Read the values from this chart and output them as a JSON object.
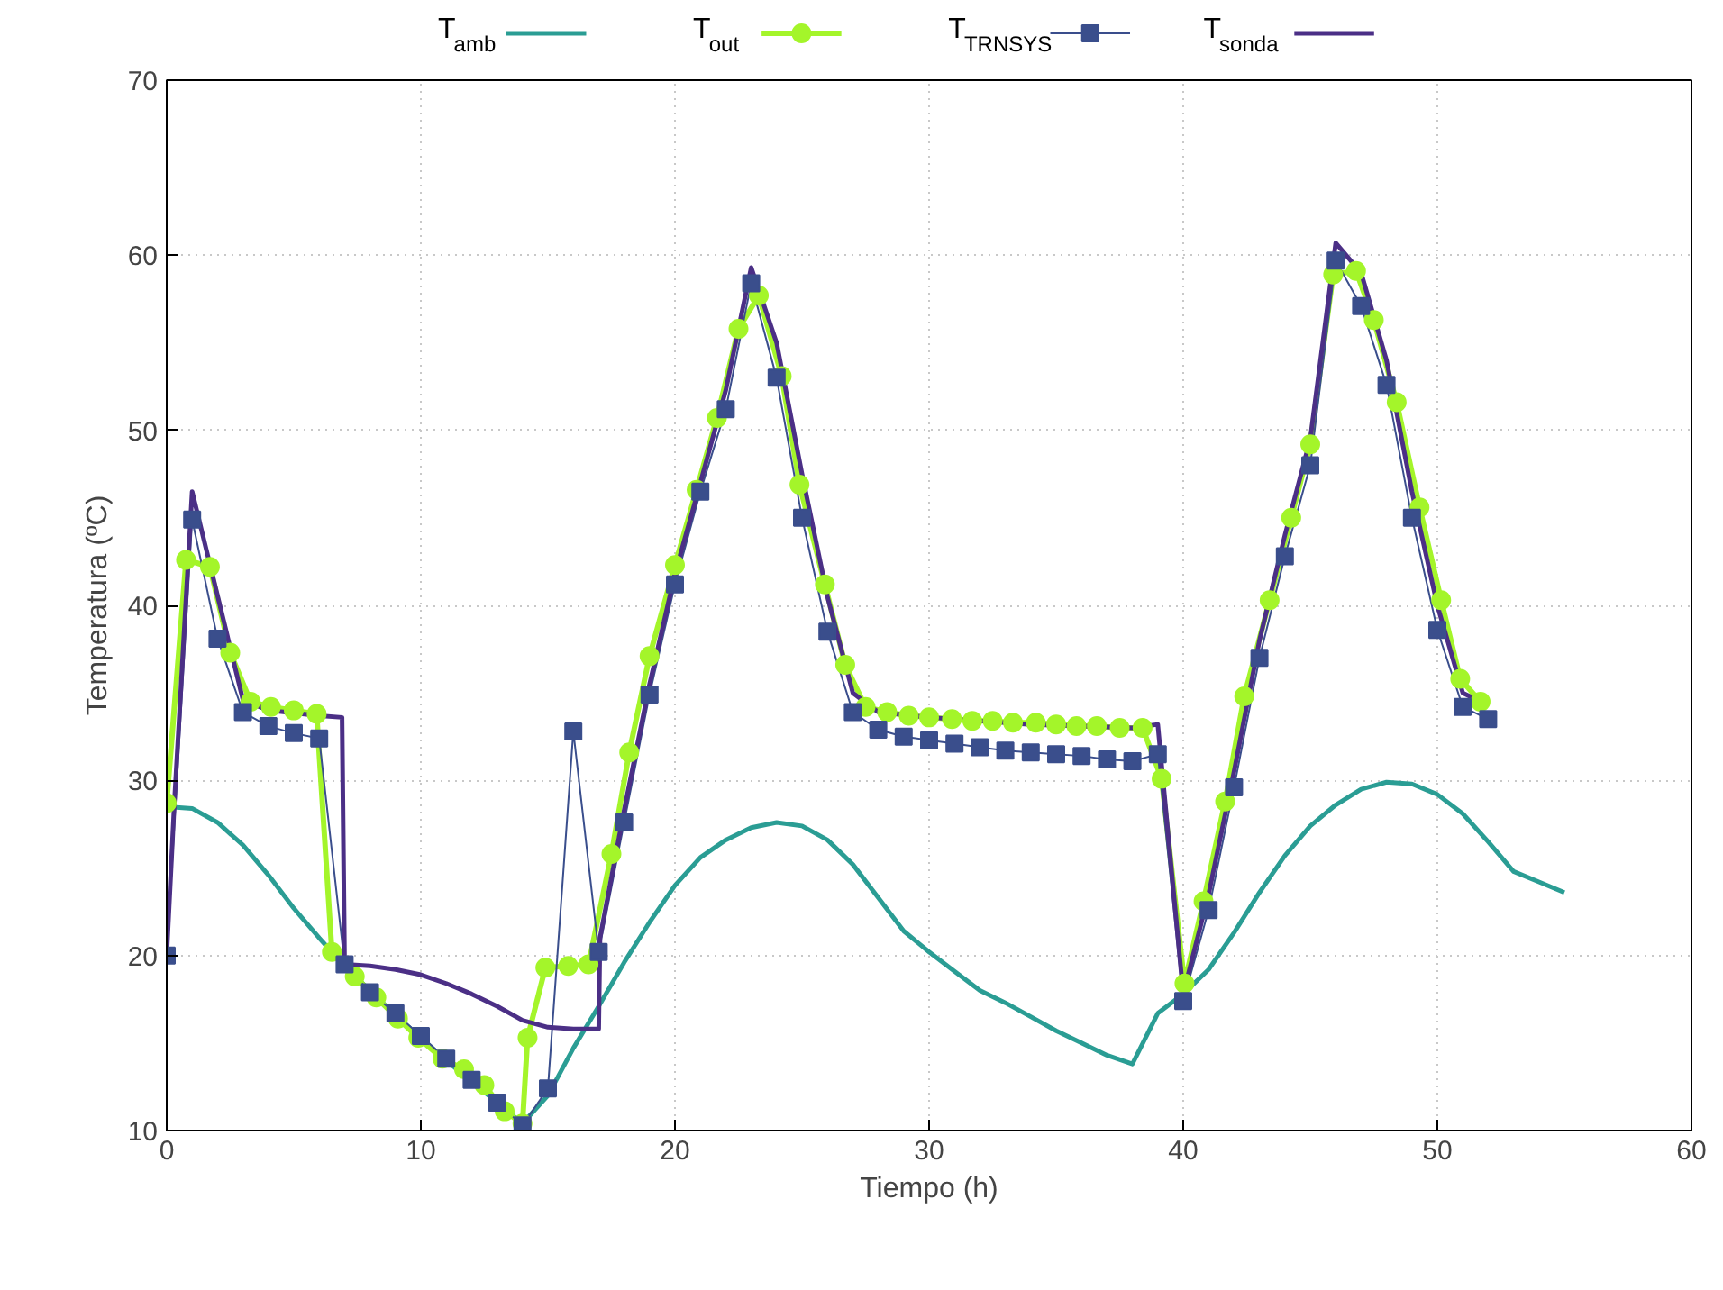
{
  "chart_data": {
    "type": "line",
    "xlabel": "Tiempo (h)",
    "ylabel": "Temperatura (ºC)",
    "xlim": [
      0,
      60
    ],
    "ylim": [
      10,
      70
    ],
    "xticks": [
      0,
      10,
      20,
      30,
      40,
      50,
      60
    ],
    "yticks": [
      10,
      20,
      30,
      40,
      50,
      60,
      70
    ],
    "grid": true,
    "legend": "top",
    "series": [
      {
        "name": "T$_{amb}$",
        "color": "#2a9d94",
        "marker": "none",
        "x": [
          0,
          1,
          2,
          3,
          4,
          5,
          6,
          7,
          8,
          9,
          10,
          11,
          12,
          13,
          14,
          15,
          16,
          17,
          18,
          19,
          20,
          21,
          22,
          23,
          24,
          25,
          26,
          27,
          28,
          29,
          30,
          31,
          32,
          33,
          34,
          35,
          36,
          37,
          38,
          39,
          40,
          41,
          42,
          43,
          44,
          45,
          46,
          47,
          48,
          49,
          50,
          51,
          52,
          53,
          54,
          55
        ],
        "values": [
          28.5,
          28.4,
          27.6,
          26.3,
          24.6,
          22.7,
          21.0,
          19.4,
          18.0,
          16.6,
          15.3,
          14.0,
          12.8,
          11.6,
          10.4,
          12.0,
          14.7,
          17.1,
          19.6,
          21.9,
          24.0,
          25.6,
          26.6,
          27.3,
          27.6,
          27.4,
          26.6,
          25.2,
          23.3,
          21.4,
          20.2,
          19.1,
          18.0,
          17.3,
          16.5,
          15.7,
          15.0,
          14.3,
          13.8,
          16.7,
          17.8,
          19.2,
          21.3,
          23.6,
          25.7,
          27.4,
          28.6,
          29.5,
          29.9,
          29.8,
          29.2,
          28.1,
          26.5,
          24.8,
          24.2,
          23.6
        ]
      },
      {
        "name": "T$_{out}$",
        "color": "#a4f52a",
        "marker": "circle",
        "x": [
          0,
          0.76,
          1.7,
          2.5,
          3.3,
          4.1,
          5.0,
          5.9,
          6.5,
          7.4,
          8.25,
          9.1,
          9.9,
          10.85,
          11.7,
          12.5,
          13.3,
          14.0,
          14.2,
          14.9,
          15.8,
          16.6,
          17.5,
          18.2,
          19.0,
          20.0,
          20.85,
          21.65,
          22.5,
          23.3,
          24.2,
          24.9,
          25.9,
          26.7,
          27.5,
          28.35,
          29.2,
          30.0,
          30.9,
          31.7,
          32.5,
          33.3,
          34.2,
          35.0,
          35.8,
          36.6,
          37.5,
          38.4,
          39.15,
          40.05,
          40.8,
          41.65,
          42.4,
          43.4,
          44.25,
          45.0,
          45.9,
          46.8,
          47.5,
          48.4,
          49.3,
          50.15,
          50.9,
          51.7
        ],
        "values": [
          28.7,
          42.6,
          42.2,
          37.3,
          34.5,
          34.2,
          34.0,
          33.8,
          20.2,
          18.8,
          17.6,
          16.4,
          15.3,
          14.1,
          13.5,
          12.6,
          11.1,
          10.4,
          15.3,
          19.3,
          19.4,
          19.5,
          25.8,
          31.6,
          37.1,
          42.3,
          46.6,
          50.7,
          55.8,
          57.7,
          53.1,
          46.9,
          41.2,
          36.6,
          34.2,
          33.9,
          33.7,
          33.6,
          33.5,
          33.4,
          33.4,
          33.3,
          33.3,
          33.2,
          33.1,
          33.1,
          33.0,
          33.0,
          30.1,
          18.4,
          23.1,
          28.8,
          34.8,
          40.3,
          45.0,
          49.2,
          58.9,
          59.1,
          56.3,
          51.6,
          45.6,
          40.3,
          35.8,
          34.5
        ]
      },
      {
        "name": "T$_{TRNSYS}$",
        "color": "#3a4e8c",
        "marker": "square",
        "x": [
          0,
          1,
          2,
          3,
          4,
          5,
          6,
          7,
          8,
          9,
          10,
          11,
          12,
          13,
          14,
          15,
          16,
          17,
          18,
          19,
          20,
          21,
          22,
          23,
          24,
          25,
          26,
          27,
          28,
          29,
          30,
          31,
          32,
          33,
          34,
          35,
          36,
          37,
          38,
          39,
          40,
          41,
          42,
          43,
          44,
          45,
          46,
          47,
          48,
          49,
          50,
          51,
          52
        ],
        "values": [
          20.0,
          44.9,
          38.1,
          33.9,
          33.1,
          32.7,
          32.4,
          19.5,
          17.9,
          16.7,
          15.4,
          14.1,
          12.9,
          11.6,
          10.3,
          12.4,
          32.8,
          20.2,
          27.6,
          34.9,
          41.2,
          46.5,
          51.2,
          58.4,
          53.0,
          45.0,
          38.5,
          33.9,
          32.9,
          32.5,
          32.3,
          32.1,
          31.9,
          31.7,
          31.6,
          31.5,
          31.4,
          31.2,
          31.1,
          31.5,
          17.4,
          22.6,
          29.6,
          37.0,
          42.8,
          48.0,
          59.7,
          57.1,
          52.6,
          45.0,
          38.6,
          34.2,
          33.5
        ]
      },
      {
        "name": "T$_{sonda}$",
        "color": "#4b2f86",
        "marker": "none",
        "x": [
          0,
          0.3,
          1,
          3,
          4,
          6,
          6.9,
          7,
          8,
          9,
          10,
          11,
          12,
          13,
          14,
          15,
          16,
          17,
          17.05,
          18,
          19,
          20,
          21,
          22,
          23,
          24,
          25,
          26,
          27,
          28,
          30,
          32,
          34,
          36,
          38,
          39,
          40,
          41,
          42,
          43,
          44,
          45,
          46,
          47,
          48,
          49,
          50,
          51,
          52
        ],
        "values": [
          20.0,
          28.7,
          46.5,
          34.6,
          34.0,
          33.7,
          33.6,
          19.5,
          19.4,
          19.2,
          18.9,
          18.4,
          17.8,
          17.1,
          16.3,
          15.9,
          15.8,
          15.8,
          21.0,
          28.3,
          35.5,
          41.8,
          47.0,
          52.3,
          59.3,
          55.0,
          47.5,
          40.5,
          35.0,
          33.9,
          33.6,
          33.4,
          33.2,
          33.1,
          33.0,
          33.2,
          17.8,
          23.5,
          30.5,
          38.0,
          44.0,
          49.5,
          60.7,
          59.0,
          54.0,
          46.5,
          40.0,
          35.0,
          34.3
        ]
      }
    ]
  }
}
